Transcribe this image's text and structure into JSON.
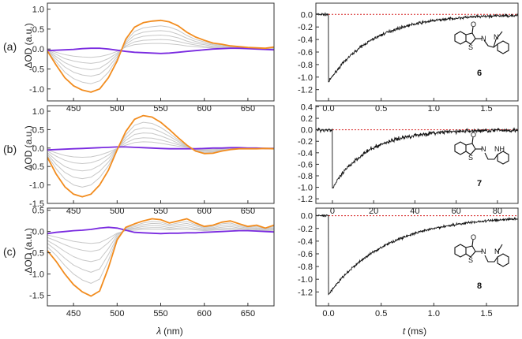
{
  "figure": {
    "row_labels": [
      "(a)",
      "(b)",
      "(c)"
    ],
    "x_label_left_symbol": "λ",
    "x_label_left_unit": "(nm)",
    "x_label_right_symbol": "t",
    "x_label_right_unit": "(ms)",
    "compound_labels": [
      "6",
      "7",
      "8"
    ],
    "atom_labels": {
      "oxygen": "O",
      "sulfur": "S",
      "nitrogen": "N",
      "nh": "NH"
    },
    "colors": {
      "final": "#f28c1e",
      "initial": "#7a2be0",
      "intermediate": "#c8c8c8",
      "kinetic": "#111111",
      "baseline": "#d62020",
      "axis": "#333333"
    }
  },
  "chart_data": [
    {
      "id": "a-spectra",
      "type": "line",
      "row": "(a)",
      "side": "left",
      "title": "",
      "xlabel": "λ (nm)",
      "ylabel": "ΔOD (a.u.)",
      "xlim": [
        420,
        680
      ],
      "ylim": [
        -1.3,
        1.15
      ],
      "xticks": [
        450,
        500,
        550,
        600,
        650
      ],
      "yticks": [
        -1.0,
        -0.5,
        0.0,
        0.5,
        1.0
      ],
      "ytick_labels": [
        "-1.0",
        "-0.5",
        "0.0",
        "0.5",
        "1.0"
      ],
      "x": [
        420,
        430,
        440,
        450,
        460,
        470,
        480,
        490,
        500,
        510,
        520,
        530,
        540,
        550,
        560,
        570,
        580,
        590,
        600,
        610,
        620,
        630,
        640,
        650,
        660,
        670,
        680
      ],
      "series": [
        {
          "name": "final",
          "values": [
            -0.05,
            -0.4,
            -0.72,
            -0.92,
            -1.03,
            -1.08,
            -1.0,
            -0.72,
            -0.3,
            0.25,
            0.55,
            0.66,
            0.7,
            0.72,
            0.68,
            0.58,
            0.42,
            0.3,
            0.22,
            0.15,
            0.12,
            0.08,
            0.06,
            0.04,
            0.03,
            0.02,
            0.05
          ]
        },
        {
          "name": "intermediate-1",
          "values": [
            -0.04,
            -0.32,
            -0.58,
            -0.74,
            -0.83,
            -0.87,
            -0.8,
            -0.58,
            -0.24,
            0.2,
            0.44,
            0.53,
            0.56,
            0.58,
            0.55,
            0.47,
            0.34,
            0.24,
            0.18,
            0.12,
            0.1,
            0.06,
            0.05,
            0.03,
            0.02,
            0.02,
            0.04
          ]
        },
        {
          "name": "intermediate-2",
          "values": [
            -0.03,
            -0.25,
            -0.45,
            -0.58,
            -0.65,
            -0.68,
            -0.63,
            -0.45,
            -0.19,
            0.16,
            0.35,
            0.42,
            0.45,
            0.46,
            0.44,
            0.37,
            0.27,
            0.19,
            0.14,
            0.1,
            0.08,
            0.05,
            0.04,
            0.03,
            0.02,
            0.01,
            0.03
          ]
        },
        {
          "name": "intermediate-3",
          "values": [
            -0.03,
            -0.19,
            -0.34,
            -0.44,
            -0.49,
            -0.52,
            -0.48,
            -0.34,
            -0.14,
            0.12,
            0.26,
            0.32,
            0.34,
            0.35,
            0.33,
            0.28,
            0.2,
            0.14,
            0.11,
            0.07,
            0.06,
            0.04,
            0.03,
            0.02,
            0.01,
            0.01,
            0.02
          ]
        },
        {
          "name": "intermediate-4",
          "values": [
            -0.02,
            -0.13,
            -0.24,
            -0.3,
            -0.34,
            -0.36,
            -0.33,
            -0.24,
            -0.1,
            0.08,
            0.18,
            0.22,
            0.23,
            0.24,
            0.23,
            0.19,
            0.14,
            0.1,
            0.07,
            0.05,
            0.04,
            0.03,
            0.02,
            0.01,
            0.01,
            0.01,
            0.02
          ]
        },
        {
          "name": "intermediate-5",
          "values": [
            -0.01,
            -0.08,
            -0.14,
            -0.18,
            -0.2,
            -0.21,
            -0.19,
            -0.14,
            -0.06,
            0.05,
            0.11,
            0.13,
            0.14,
            0.14,
            0.13,
            0.11,
            0.08,
            0.06,
            0.04,
            0.03,
            0.02,
            0.02,
            0.01,
            0.01,
            0.0,
            0.0,
            0.01
          ]
        },
        {
          "name": "initial",
          "values": [
            -0.04,
            -0.03,
            -0.02,
            -0.01,
            0.01,
            0.02,
            0.02,
            0.0,
            -0.03,
            -0.06,
            -0.08,
            -0.09,
            -0.1,
            -0.11,
            -0.1,
            -0.08,
            -0.06,
            -0.04,
            -0.02,
            0.0,
            0.01,
            0.02,
            0.02,
            0.01,
            0.0,
            -0.01,
            -0.02
          ]
        }
      ]
    },
    {
      "id": "a-kinetic",
      "type": "line",
      "row": "(a)",
      "side": "right",
      "title": "",
      "xlabel": "t (ms)",
      "ylabel": "",
      "xlim": [
        -0.12,
        1.8
      ],
      "ylim": [
        -1.38,
        0.18
      ],
      "xticks": [
        0.0,
        0.5,
        1.0,
        1.5
      ],
      "xtick_labels": [
        "0.0",
        "0.5",
        "1.0",
        "1.5"
      ],
      "yticks": [
        -1.2,
        -1.0,
        -0.8,
        -0.6,
        -0.4,
        -0.2,
        0.0
      ],
      "ytick_labels": [
        "-1.2",
        "-1.0",
        "-0.8",
        "-0.6",
        "-0.4",
        "-0.2",
        "0.0"
      ],
      "baseline": 0.0,
      "signal_start": 0.0,
      "amplitude": -1.08,
      "decay_constant": 0.42,
      "noise": 0.022,
      "compound": "6"
    },
    {
      "id": "b-spectra",
      "type": "line",
      "row": "(b)",
      "side": "left",
      "title": "",
      "xlabel": "λ (nm)",
      "ylabel": "ΔOD (a.u.)",
      "xlim": [
        420,
        680
      ],
      "ylim": [
        -1.5,
        1.15
      ],
      "xticks": [
        450,
        500,
        550,
        600,
        650
      ],
      "yticks": [
        -1.5,
        -1.0,
        -0.5,
        0.0,
        0.5,
        1.0
      ],
      "ytick_labels": [
        "-1.5",
        "-1.0",
        "-0.5",
        "0.0",
        "0.5",
        "1.0"
      ],
      "x": [
        420,
        430,
        440,
        450,
        460,
        470,
        480,
        490,
        500,
        510,
        520,
        530,
        540,
        550,
        560,
        570,
        580,
        590,
        600,
        610,
        620,
        630,
        640,
        650,
        660,
        670,
        680
      ],
      "series": [
        {
          "name": "final",
          "values": [
            -0.25,
            -0.7,
            -1.05,
            -1.25,
            -1.32,
            -1.25,
            -1.0,
            -0.6,
            -0.05,
            0.45,
            0.78,
            0.88,
            0.84,
            0.7,
            0.5,
            0.28,
            0.08,
            -0.08,
            -0.15,
            -0.14,
            -0.08,
            -0.04,
            -0.02,
            -0.02,
            -0.02,
            -0.01,
            -0.02
          ]
        },
        {
          "name": "intermediate-1",
          "values": [
            -0.2,
            -0.56,
            -0.84,
            -1.0,
            -1.06,
            -1.0,
            -0.8,
            -0.48,
            -0.04,
            0.36,
            0.62,
            0.7,
            0.67,
            0.56,
            0.4,
            0.22,
            0.06,
            -0.06,
            -0.12,
            -0.11,
            -0.06,
            -0.03,
            -0.02,
            -0.02,
            -0.02,
            -0.01,
            -0.02
          ]
        },
        {
          "name": "intermediate-2",
          "values": [
            -0.16,
            -0.44,
            -0.66,
            -0.79,
            -0.83,
            -0.79,
            -0.63,
            -0.38,
            -0.03,
            0.28,
            0.49,
            0.55,
            0.53,
            0.44,
            0.32,
            0.18,
            0.05,
            -0.05,
            -0.09,
            -0.09,
            -0.05,
            -0.03,
            -0.01,
            -0.01,
            -0.01,
            -0.01,
            -0.01
          ]
        },
        {
          "name": "intermediate-3",
          "values": [
            -0.12,
            -0.33,
            -0.5,
            -0.59,
            -0.62,
            -0.59,
            -0.47,
            -0.28,
            -0.02,
            0.21,
            0.37,
            0.41,
            0.4,
            0.33,
            0.24,
            0.13,
            0.04,
            -0.04,
            -0.07,
            -0.07,
            -0.04,
            -0.02,
            -0.01,
            -0.01,
            -0.01,
            0.0,
            -0.01
          ]
        },
        {
          "name": "intermediate-4",
          "values": [
            -0.08,
            -0.22,
            -0.33,
            -0.4,
            -0.42,
            -0.4,
            -0.32,
            -0.19,
            -0.02,
            0.14,
            0.25,
            0.28,
            0.27,
            0.22,
            0.16,
            0.09,
            0.03,
            -0.03,
            -0.05,
            -0.04,
            -0.03,
            -0.01,
            -0.01,
            -0.01,
            -0.01,
            0.0,
            -0.01
          ]
        },
        {
          "name": "intermediate-5",
          "values": [
            -0.05,
            -0.13,
            -0.2,
            -0.24,
            -0.25,
            -0.24,
            -0.19,
            -0.11,
            -0.01,
            0.08,
            0.15,
            0.17,
            0.16,
            0.13,
            0.09,
            0.05,
            0.02,
            -0.02,
            -0.03,
            -0.03,
            -0.02,
            -0.01,
            0.0,
            0.0,
            0.0,
            0.0,
            0.0
          ]
        },
        {
          "name": "initial",
          "values": [
            -0.05,
            -0.04,
            -0.03,
            -0.02,
            -0.01,
            0.0,
            0.01,
            0.02,
            0.03,
            0.03,
            0.02,
            0.01,
            0.0,
            -0.01,
            -0.02,
            -0.02,
            -0.02,
            -0.02,
            -0.01,
            0.0,
            0.0,
            0.01,
            0.01,
            0.0,
            0.0,
            -0.01,
            -0.01
          ]
        }
      ]
    },
    {
      "id": "b-kinetic",
      "type": "line",
      "row": "(b)",
      "side": "right",
      "title": "",
      "xlabel": "t (ms)",
      "ylabel": "",
      "xlim": [
        -8,
        90
      ],
      "ylim": [
        -1.28,
        0.42
      ],
      "xticks": [
        0,
        20,
        40,
        60,
        80
      ],
      "xtick_labels": [
        "0",
        "20",
        "40",
        "60",
        "80"
      ],
      "yticks": [
        -1.2,
        -1.0,
        -0.8,
        -0.6,
        -0.4,
        -0.2,
        0.0,
        0.2,
        0.4
      ],
      "ytick_labels": [
        "-1.2",
        "-1.0",
        "-0.8",
        "-0.6",
        "-0.4",
        "-0.2",
        "0.0",
        "0.2",
        "0.4"
      ],
      "baseline": 0.0,
      "signal_start": 0.0,
      "amplitude": -1.02,
      "decay_constant": 17.0,
      "noise": 0.035,
      "compound": "7"
    },
    {
      "id": "c-spectra",
      "type": "line",
      "row": "(c)",
      "side": "left",
      "title": "",
      "xlabel": "λ (nm)",
      "ylabel": "ΔOD (a.u.)",
      "xlim": [
        420,
        680
      ],
      "ylim": [
        -1.75,
        0.55
      ],
      "xticks": [
        450,
        500,
        550,
        600,
        650
      ],
      "yticks": [
        -1.5,
        -1.0,
        -0.5,
        0.0,
        0.5
      ],
      "ytick_labels": [
        "-1.5",
        "-1.0",
        "-0.5",
        "0.0",
        "0.5"
      ],
      "x": [
        420,
        430,
        440,
        450,
        460,
        470,
        480,
        490,
        500,
        510,
        520,
        530,
        540,
        550,
        560,
        570,
        580,
        590,
        600,
        610,
        620,
        630,
        640,
        650,
        660,
        670,
        680
      ],
      "series": [
        {
          "name": "final",
          "values": [
            -0.45,
            -0.7,
            -1.0,
            -1.25,
            -1.42,
            -1.52,
            -1.4,
            -0.85,
            -0.2,
            0.1,
            0.18,
            0.25,
            0.3,
            0.28,
            0.2,
            0.25,
            0.3,
            0.2,
            0.12,
            0.15,
            0.22,
            0.25,
            0.18,
            0.12,
            0.15,
            0.08,
            0.15
          ]
        },
        {
          "name": "intermediate-1",
          "values": [
            -0.36,
            -0.56,
            -0.8,
            -1.0,
            -1.14,
            -1.22,
            -1.12,
            -0.68,
            -0.16,
            0.08,
            0.14,
            0.2,
            0.24,
            0.22,
            0.16,
            0.2,
            0.24,
            0.16,
            0.1,
            0.12,
            0.18,
            0.2,
            0.14,
            0.1,
            0.12,
            0.06,
            0.12
          ]
        },
        {
          "name": "intermediate-2",
          "values": [
            -0.28,
            -0.44,
            -0.63,
            -0.79,
            -0.89,
            -0.96,
            -0.88,
            -0.54,
            -0.13,
            0.06,
            0.11,
            0.16,
            0.19,
            0.18,
            0.13,
            0.16,
            0.19,
            0.13,
            0.08,
            0.09,
            0.14,
            0.16,
            0.11,
            0.08,
            0.09,
            0.05,
            0.09
          ]
        },
        {
          "name": "intermediate-3",
          "values": [
            -0.21,
            -0.33,
            -0.47,
            -0.59,
            -0.67,
            -0.71,
            -0.66,
            -0.4,
            -0.09,
            0.05,
            0.08,
            0.12,
            0.14,
            0.13,
            0.09,
            0.12,
            0.14,
            0.09,
            0.06,
            0.07,
            0.1,
            0.12,
            0.08,
            0.06,
            0.07,
            0.04,
            0.07
          ]
        },
        {
          "name": "intermediate-4",
          "values": [
            -0.14,
            -0.22,
            -0.31,
            -0.39,
            -0.44,
            -0.47,
            -0.43,
            -0.26,
            -0.06,
            0.03,
            0.06,
            0.08,
            0.09,
            0.09,
            0.06,
            0.08,
            0.09,
            0.06,
            0.04,
            0.05,
            0.07,
            0.08,
            0.06,
            0.04,
            0.05,
            0.02,
            0.05
          ]
        },
        {
          "name": "intermediate-5",
          "values": [
            -0.08,
            -0.13,
            -0.18,
            -0.23,
            -0.26,
            -0.28,
            -0.26,
            -0.16,
            -0.04,
            0.02,
            0.03,
            0.05,
            0.05,
            0.05,
            0.04,
            0.05,
            0.05,
            0.04,
            0.02,
            0.03,
            0.04,
            0.05,
            0.03,
            0.02,
            0.03,
            0.01,
            0.03
          ]
        },
        {
          "name": "initial",
          "values": [
            -0.05,
            -0.02,
            0.0,
            0.02,
            0.03,
            0.05,
            0.08,
            0.1,
            0.08,
            0.03,
            -0.02,
            -0.03,
            -0.04,
            -0.05,
            -0.04,
            -0.04,
            -0.03,
            -0.03,
            -0.02,
            -0.01,
            0.0,
            0.01,
            0.02,
            0.02,
            0.01,
            0.0,
            -0.01
          ]
        }
      ]
    },
    {
      "id": "c-kinetic",
      "type": "line",
      "row": "(c)",
      "side": "right",
      "title": "",
      "xlabel": "t (ms)",
      "ylabel": "",
      "xlim": [
        -0.12,
        1.8
      ],
      "ylim": [
        -1.42,
        0.12
      ],
      "xticks": [
        0.0,
        0.5,
        1.0,
        1.5
      ],
      "xtick_labels": [
        "0.0",
        "0.5",
        "1.0",
        "1.5"
      ],
      "yticks": [
        -1.2,
        -1.0,
        -0.8,
        -0.6,
        -0.4,
        -0.2,
        0.0
      ],
      "ytick_labels": [
        "-1.2",
        "-1.0",
        "-0.8",
        "-0.6",
        "-0.4",
        "-0.2",
        "0.0"
      ],
      "baseline": 0.0,
      "signal_start": 0.0,
      "amplitude": -1.24,
      "decay_constant": 0.55,
      "noise": 0.02,
      "compound": "8"
    }
  ]
}
